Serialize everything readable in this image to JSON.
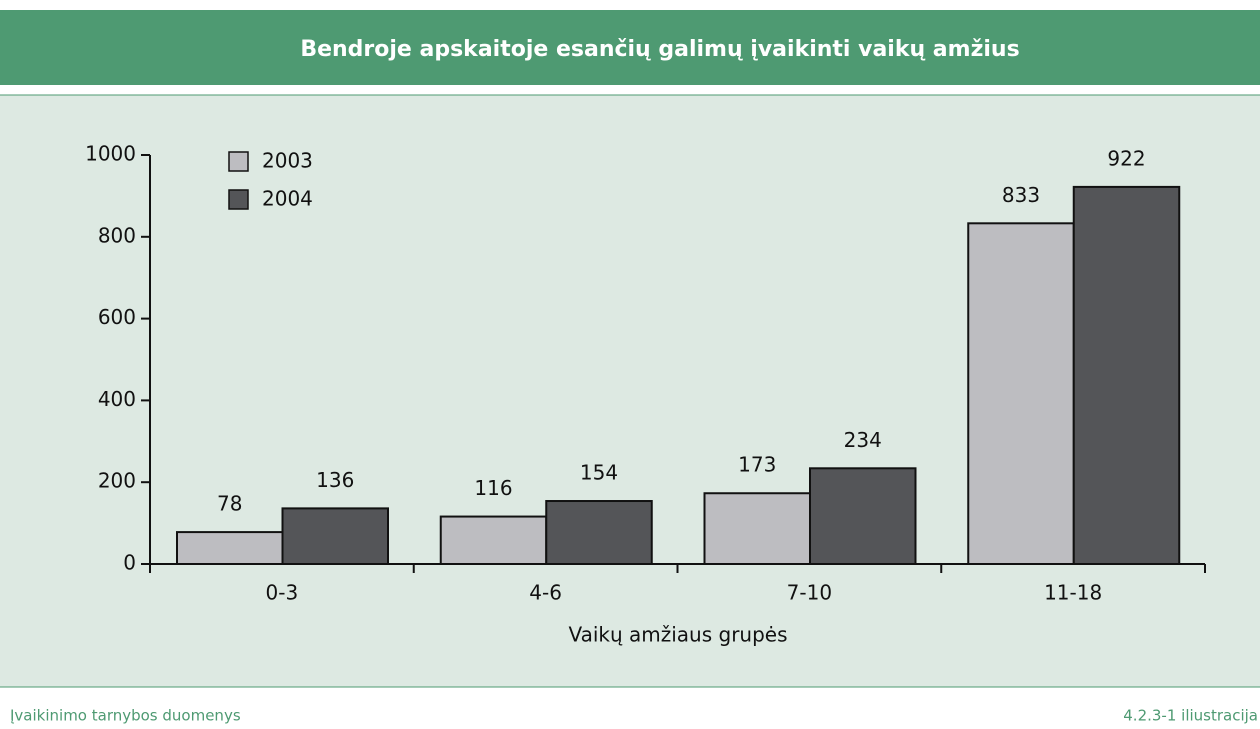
{
  "chart_data": {
    "type": "bar",
    "title": "Bendroje apskaitoje esančių galimų įvaikinti vaikų amžius",
    "categories": [
      "0-3",
      "4-6",
      "7-10",
      "11-18"
    ],
    "series": [
      {
        "name": "2003",
        "color": "#bdbdc1",
        "values": [
          78,
          116,
          173,
          833
        ]
      },
      {
        "name": "2004",
        "color": "#545558",
        "values": [
          136,
          154,
          234,
          922
        ]
      }
    ],
    "xlabel": "Vaikų amžiaus grupės",
    "ylim": [
      0,
      1000
    ],
    "yticks": [
      0,
      200,
      400,
      600,
      800,
      1000
    ],
    "grid": false,
    "legend": "top-left"
  },
  "footer": {
    "source": "Įvaikinimo tarnybos duomenys",
    "figure": "4.2.3-1 iliustracija"
  }
}
